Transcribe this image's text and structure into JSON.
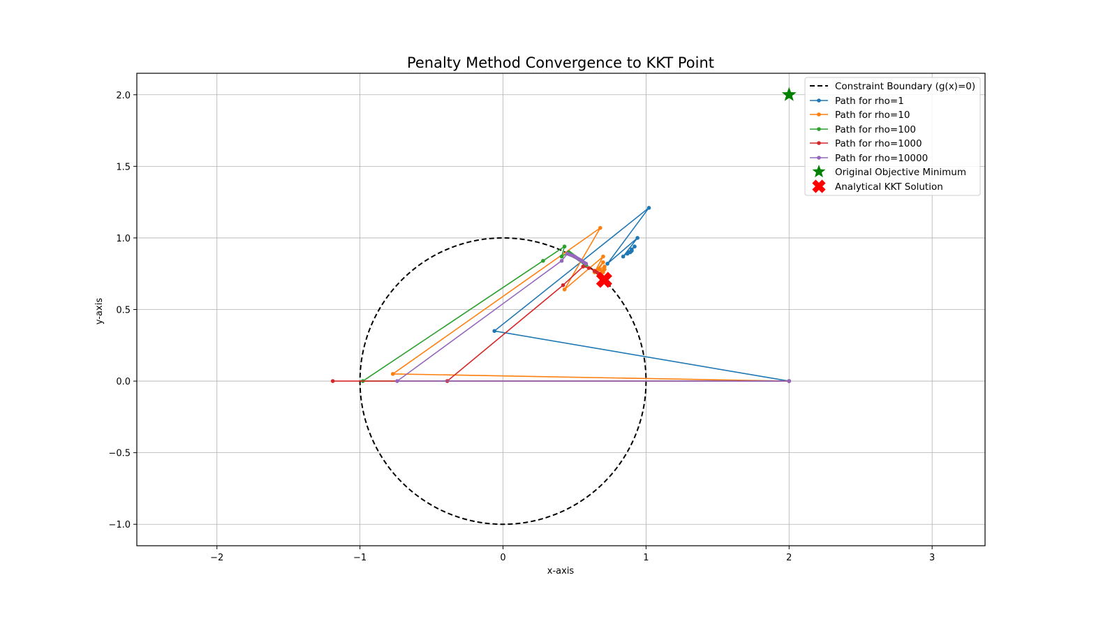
{
  "chart_data": {
    "type": "line",
    "title": "Penalty Method Convergence to KKT Point",
    "xlabel": "x-axis",
    "ylabel": "y-axis",
    "xlim": [
      -2.56,
      3.37
    ],
    "ylim": [
      -1.15,
      2.15
    ],
    "xticks": [
      -2,
      -1,
      0,
      1,
      2,
      3
    ],
    "xtick_labels": [
      "−2",
      "−1",
      "0",
      "1",
      "2",
      "3"
    ],
    "yticks": [
      -1.0,
      -0.5,
      0.0,
      0.5,
      1.0,
      1.5,
      2.0
    ],
    "ytick_labels": [
      "−1.0",
      "−0.5",
      "0.0",
      "0.5",
      "1.0",
      "1.5",
      "2.0"
    ],
    "grid": true,
    "legend_position": "upper right",
    "constraint": {
      "name": "Constraint Boundary (g(x)=0)",
      "shape": "circle",
      "center": [
        0,
        0
      ],
      "radius": 1,
      "color": "#000000",
      "style": "dashed"
    },
    "series": [
      {
        "name": "Path for rho=1",
        "color": "#1f77b4",
        "x": [
          2.0,
          -0.06,
          1.02,
          0.73,
          0.94,
          0.84,
          0.92,
          0.87,
          0.9,
          0.88,
          0.9,
          0.89
        ],
        "y": [
          0.0,
          0.35,
          1.21,
          0.82,
          1.0,
          0.87,
          0.94,
          0.89,
          0.92,
          0.9,
          0.91,
          0.9
        ]
      },
      {
        "name": "Path for rho=10",
        "color": "#ff7f0e",
        "x": [
          2.0,
          -0.77,
          0.68,
          0.43,
          0.7,
          0.64,
          0.7,
          0.67,
          0.71,
          0.69,
          0.71,
          0.7
        ],
        "y": [
          0.0,
          0.05,
          1.07,
          0.64,
          0.87,
          0.76,
          0.83,
          0.78,
          0.8,
          0.77,
          0.78,
          0.76
        ]
      },
      {
        "name": "Path for rho=100",
        "color": "#2ca02c",
        "x": [
          2.0,
          -0.98,
          0.28,
          0.43,
          0.41,
          0.46,
          0.5,
          0.56,
          0.58
        ],
        "y": [
          0.0,
          0.0,
          0.84,
          0.94,
          0.87,
          0.9,
          0.87,
          0.83,
          0.81
        ]
      },
      {
        "name": "Path for rho=1000",
        "color": "#d62728",
        "x": [
          2.0,
          -1.19,
          -0.39,
          0.42,
          0.56,
          0.6,
          0.64,
          0.67,
          0.7,
          0.71
        ],
        "y": [
          0.0,
          0.0,
          0.0,
          0.67,
          0.8,
          0.79,
          0.77,
          0.75,
          0.72,
          0.71
        ]
      },
      {
        "name": "Path for rho=10000",
        "color": "#9467bd",
        "x": [
          2.0,
          -0.74,
          0.41,
          0.45,
          0.5,
          0.55,
          0.58
        ],
        "y": [
          0.0,
          0.0,
          0.84,
          0.89,
          0.87,
          0.84,
          0.82
        ]
      }
    ],
    "markers": [
      {
        "name": "Original Objective Minimum",
        "x": 2.0,
        "y": 2.0,
        "marker": "star",
        "color": "#008000"
      },
      {
        "name": "Analytical KKT Solution",
        "x": 0.7071,
        "y": 0.7071,
        "marker": "X",
        "color": "#ff0000"
      }
    ]
  },
  "legend": {
    "items": [
      {
        "label": "Constraint Boundary (g(x)=0)"
      },
      {
        "label": "Path for rho=1"
      },
      {
        "label": "Path for rho=10"
      },
      {
        "label": "Path for rho=100"
      },
      {
        "label": "Path for rho=1000"
      },
      {
        "label": "Path for rho=10000"
      },
      {
        "label": "Original Objective Minimum"
      },
      {
        "label": "Analytical KKT Solution"
      }
    ]
  }
}
